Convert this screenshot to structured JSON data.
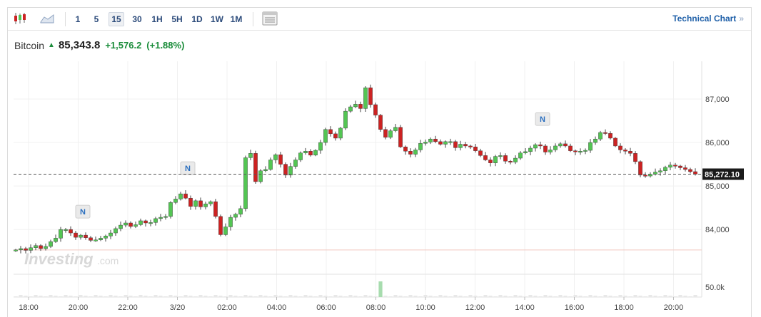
{
  "toolbar": {
    "chart_type_candle_icon": "candlestick-icon",
    "chart_type_area_icon": "area-chart-icon",
    "intervals": [
      "1",
      "5",
      "15",
      "30",
      "1H",
      "5H",
      "1D",
      "1W",
      "1M"
    ],
    "active_interval": "15",
    "settings_icon": "table-icon",
    "technical_chart_label": "Technical Chart",
    "technical_chart_chevron": "»"
  },
  "quote": {
    "name": "Bitcoin",
    "price": "85,343.8",
    "change": "+1,576.2",
    "change_pct": "(+1.88%)",
    "up_color": "#1a8c3a"
  },
  "watermark": {
    "brand": "Investing",
    "suffix": ".com"
  },
  "chart_data": {
    "type": "candlestick",
    "interval_minutes": 15,
    "ylim": [
      83500,
      87500
    ],
    "yticks": [
      84000,
      85000,
      86000,
      87000
    ],
    "ytick_labels": [
      "84,000",
      "85,000",
      "86,000",
      "87,000"
    ],
    "xtick_labels": [
      "18:00",
      "20:00",
      "22:00",
      "3/20",
      "02:00",
      "04:00",
      "06:00",
      "08:00",
      "10:00",
      "12:00",
      "14:00",
      "16:00",
      "18:00",
      "20:00"
    ],
    "current_price_label": "85,272.10",
    "current_price": 85272.1,
    "reference_price": 83530,
    "news_label": "N",
    "news_markers_at_candle": [
      12,
      33,
      104
    ],
    "volume_axis_label": "50.0k",
    "volume_spike_candle": 73,
    "up_color": "#53c553",
    "down_color": "#cc2222",
    "closes": [
      83530,
      83560,
      83520,
      83580,
      83630,
      83560,
      83610,
      83720,
      83800,
      84000,
      84000,
      83920,
      83820,
      83870,
      83810,
      83750,
      83760,
      83800,
      83850,
      83920,
      84020,
      84100,
      84150,
      84070,
      84110,
      84200,
      84150,
      84160,
      84250,
      84280,
      84300,
      84620,
      84700,
      84820,
      84720,
      84530,
      84660,
      84520,
      84590,
      84640,
      84300,
      83880,
      84060,
      84280,
      84350,
      84480,
      85650,
      85750,
      85100,
      85350,
      85380,
      85600,
      85720,
      85500,
      85250,
      85450,
      85600,
      85760,
      85800,
      85710,
      85820,
      86000,
      86300,
      86200,
      86100,
      86330,
      86720,
      86820,
      86880,
      86780,
      87260,
      86870,
      86630,
      86300,
      86120,
      86270,
      86350,
      85900,
      85800,
      85730,
      85830,
      85980,
      86010,
      86080,
      86020,
      85960,
      86020,
      86020,
      85880,
      85960,
      85920,
      85900,
      85810,
      85700,
      85600,
      85530,
      85680,
      85700,
      85570,
      85550,
      85640,
      85760,
      85790,
      85870,
      85950,
      85920,
      85780,
      85830,
      85920,
      85970,
      85920,
      85810,
      85790,
      85800,
      85820,
      86000,
      86080,
      86230,
      86210,
      86100,
      85920,
      85830,
      85800,
      85750,
      85560,
      85250,
      85230,
      85270,
      85320,
      85350,
      85430,
      85480,
      85460,
      85420,
      85380,
      85330,
      85272
    ]
  }
}
